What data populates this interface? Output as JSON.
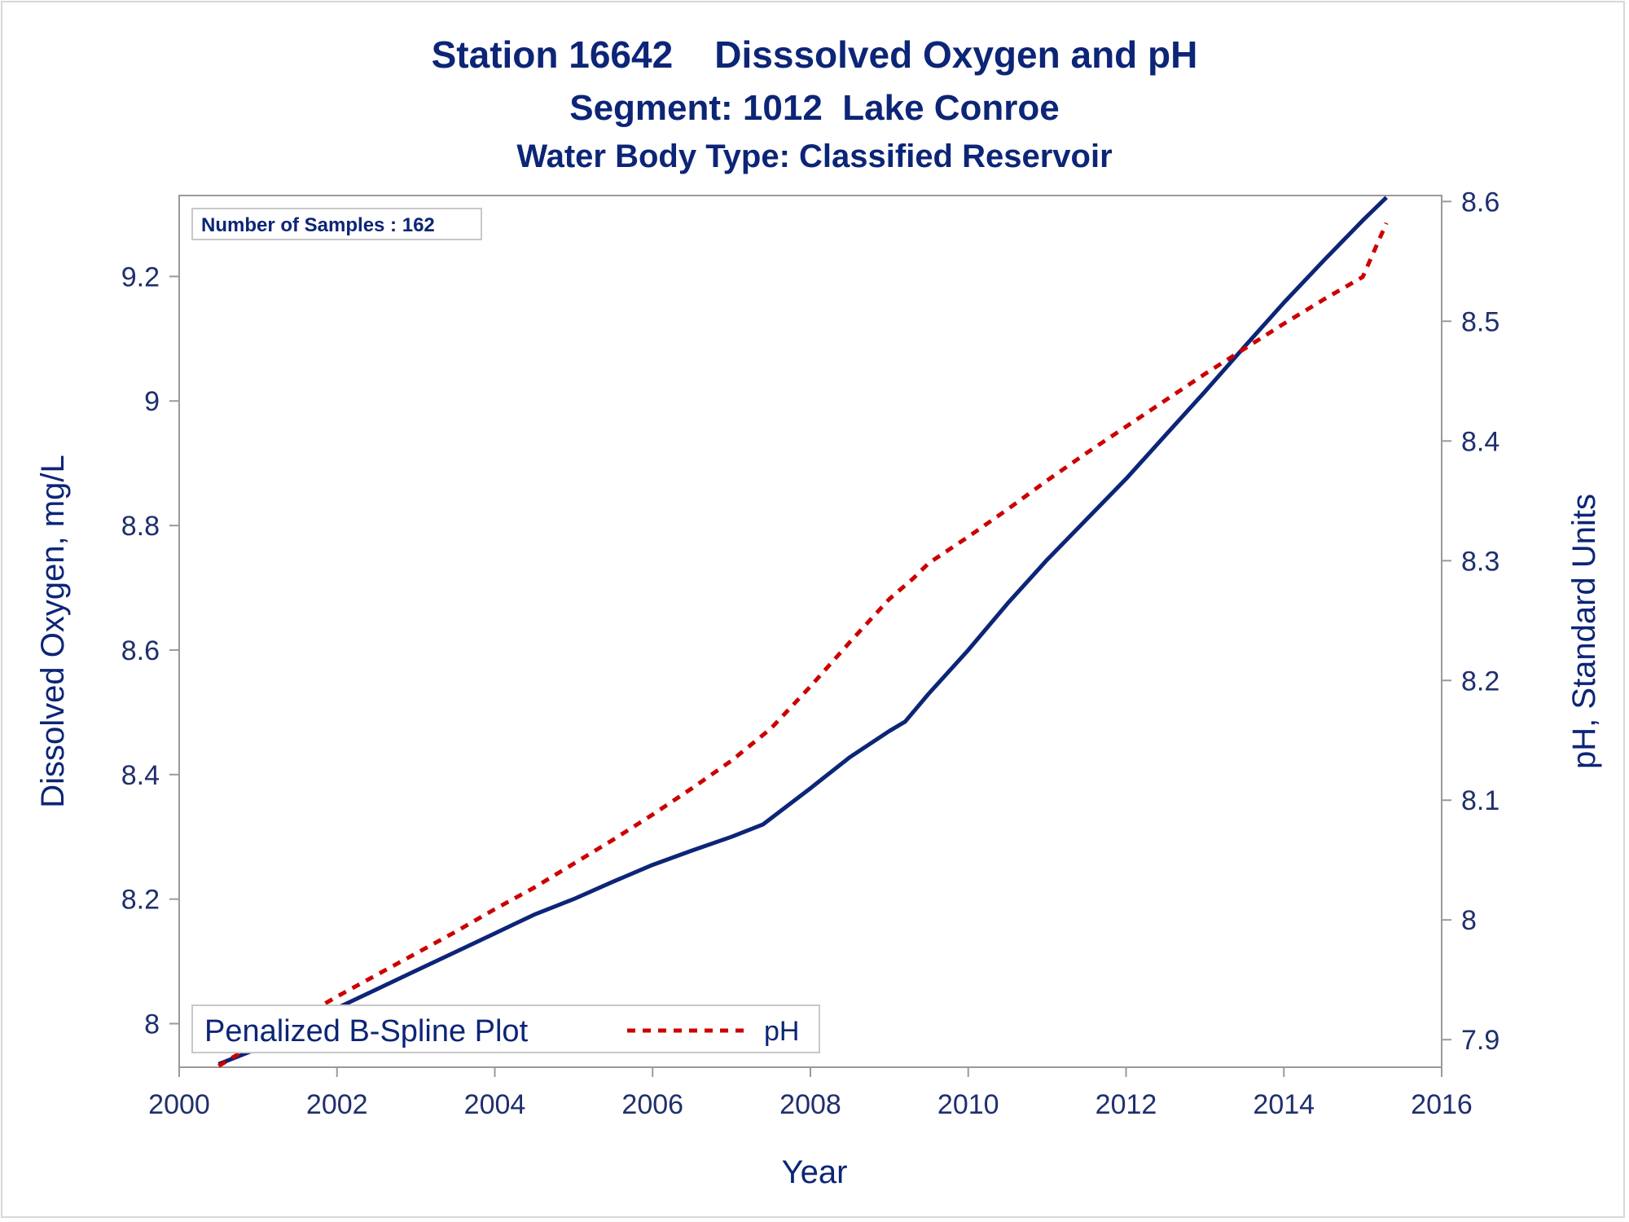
{
  "chart_data": {
    "type": "line",
    "title": "Station 16642    Disssolved Oxygen and pH",
    "subtitle": "Segment: 1012  Lake Conroe",
    "subtitle2": "Water Body Type: Classified Reservoir",
    "xlabel": "Year",
    "ylabel": "Dissolved Oxygen, mg/L",
    "y2label": "pH, Standard Units",
    "inset": "Number of Samples : 162",
    "xlim": [
      2000,
      2016
    ],
    "ylim": [
      7.93,
      9.33
    ],
    "y2lim": [
      7.877,
      8.605
    ],
    "xticks": [
      "2000",
      "2002",
      "2004",
      "2006",
      "2008",
      "2010",
      "2012",
      "2014",
      "2016"
    ],
    "yticks": [
      "8",
      "8.2",
      "8.4",
      "8.6",
      "8.8",
      "9",
      "9.2"
    ],
    "y2ticks": [
      "7.9",
      "8",
      "8.1",
      "8.2",
      "8.3",
      "8.4",
      "8.5",
      "8.6"
    ],
    "legend": {
      "title": "Penalized B-Spline Plot",
      "placement": "bottom-left"
    },
    "grid": false,
    "series": [
      {
        "name": "",
        "axis": "left",
        "color": "#0c2577",
        "style": "solid",
        "x": [
          2000.5,
          2001.0,
          2001.5,
          2002.0,
          2002.5,
          2003.0,
          2003.5,
          2004.0,
          2004.5,
          2005.0,
          2005.5,
          2006.0,
          2006.5,
          2007.0,
          2007.4,
          2008.0,
          2008.5,
          2009.0,
          2009.2,
          2009.5,
          2010.0,
          2010.5,
          2011.0,
          2011.5,
          2012.0,
          2012.5,
          2013.0,
          2013.5,
          2014.0,
          2014.5,
          2015.0,
          2015.3
        ],
        "values": [
          7.935,
          7.96,
          7.99,
          8.025,
          8.055,
          8.085,
          8.115,
          8.145,
          8.175,
          8.2,
          8.228,
          8.255,
          8.278,
          8.3,
          8.32,
          8.378,
          8.428,
          8.47,
          8.485,
          8.53,
          8.6,
          8.675,
          8.745,
          8.81,
          8.875,
          8.945,
          9.015,
          9.087,
          9.158,
          9.225,
          9.29,
          9.327
        ]
      },
      {
        "name": "pH",
        "axis": "right",
        "color": "#cc0000",
        "style": "dashed",
        "x": [
          2000.5,
          2001.0,
          2001.5,
          2002.0,
          2002.5,
          2003.0,
          2003.5,
          2004.0,
          2004.5,
          2005.0,
          2005.5,
          2006.0,
          2006.5,
          2007.0,
          2007.5,
          2008.0,
          2008.5,
          2009.0,
          2009.3,
          2009.5,
          2010.0,
          2010.5,
          2011.0,
          2011.5,
          2012.0,
          2012.5,
          2013.0,
          2013.5,
          2014.0,
          2014.5,
          2015.0,
          2015.3
        ],
        "values": [
          7.878,
          7.898,
          7.917,
          7.936,
          7.954,
          7.972,
          7.99,
          8.009,
          8.027,
          8.047,
          8.067,
          8.088,
          8.11,
          8.133,
          8.16,
          8.195,
          8.232,
          8.268,
          8.285,
          8.298,
          8.32,
          8.343,
          8.367,
          8.39,
          8.412,
          8.434,
          8.456,
          8.477,
          8.498,
          8.518,
          8.537,
          8.582
        ]
      }
    ]
  },
  "colors": {
    "text": "#0c2577",
    "axis": "#9a9a9a",
    "do_line": "#0c2577",
    "ph_line": "#cc0000"
  }
}
